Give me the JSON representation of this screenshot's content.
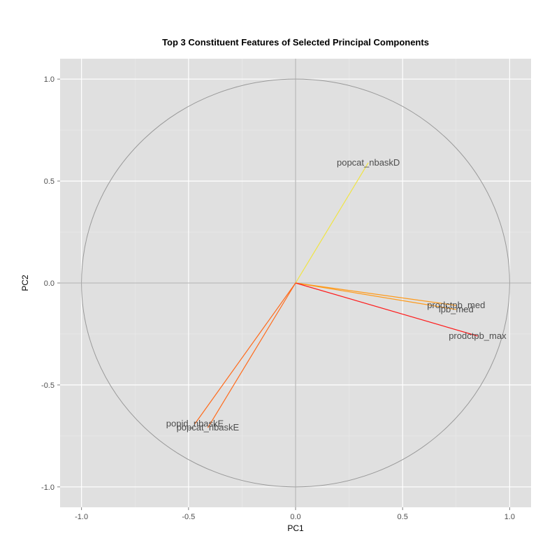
{
  "chart_data": {
    "type": "scatter",
    "subtype": "pca-correlation-circle",
    "title": "Top 3 Constituent Features of Selected Principal Components",
    "xlabel": "PC1",
    "ylabel": "PC2",
    "xlim": [
      -1.1,
      1.1
    ],
    "ylim": [
      -1.1,
      1.1
    ],
    "x_ticks": [
      -1.0,
      -0.5,
      0.0,
      0.5,
      1.0
    ],
    "y_ticks": [
      -1.0,
      -0.5,
      0.0,
      0.5,
      1.0
    ],
    "x_tick_labels": [
      "-1.0",
      "-0.5",
      "0.0",
      "0.5",
      "1.0"
    ],
    "y_tick_labels": [
      "-1.0",
      "-0.5",
      "0.0",
      "0.5",
      "1.0"
    ],
    "grid": true,
    "unit_circle": true,
    "background_color": "#e0e0e0",
    "vectors": [
      {
        "label": "popcat_nbaskD",
        "x": 0.34,
        "y": 0.59,
        "color": "#f0e442"
      },
      {
        "label": "prodctpb_med",
        "x": 0.75,
        "y": -0.11,
        "color": "#ff9a1a"
      },
      {
        "label": "lpb_med",
        "x": 0.75,
        "y": -0.13,
        "color": "#ff9a1a"
      },
      {
        "label": "prodctpb_max",
        "x": 0.85,
        "y": -0.26,
        "color": "#ff1a1a"
      },
      {
        "label": "popid_nbaskE",
        "x": -0.47,
        "y": -0.69,
        "color": "#ff6a1a"
      },
      {
        "label": "popcat_nbaskE",
        "x": -0.41,
        "y": -0.71,
        "color": "#ff6a1a"
      }
    ]
  }
}
